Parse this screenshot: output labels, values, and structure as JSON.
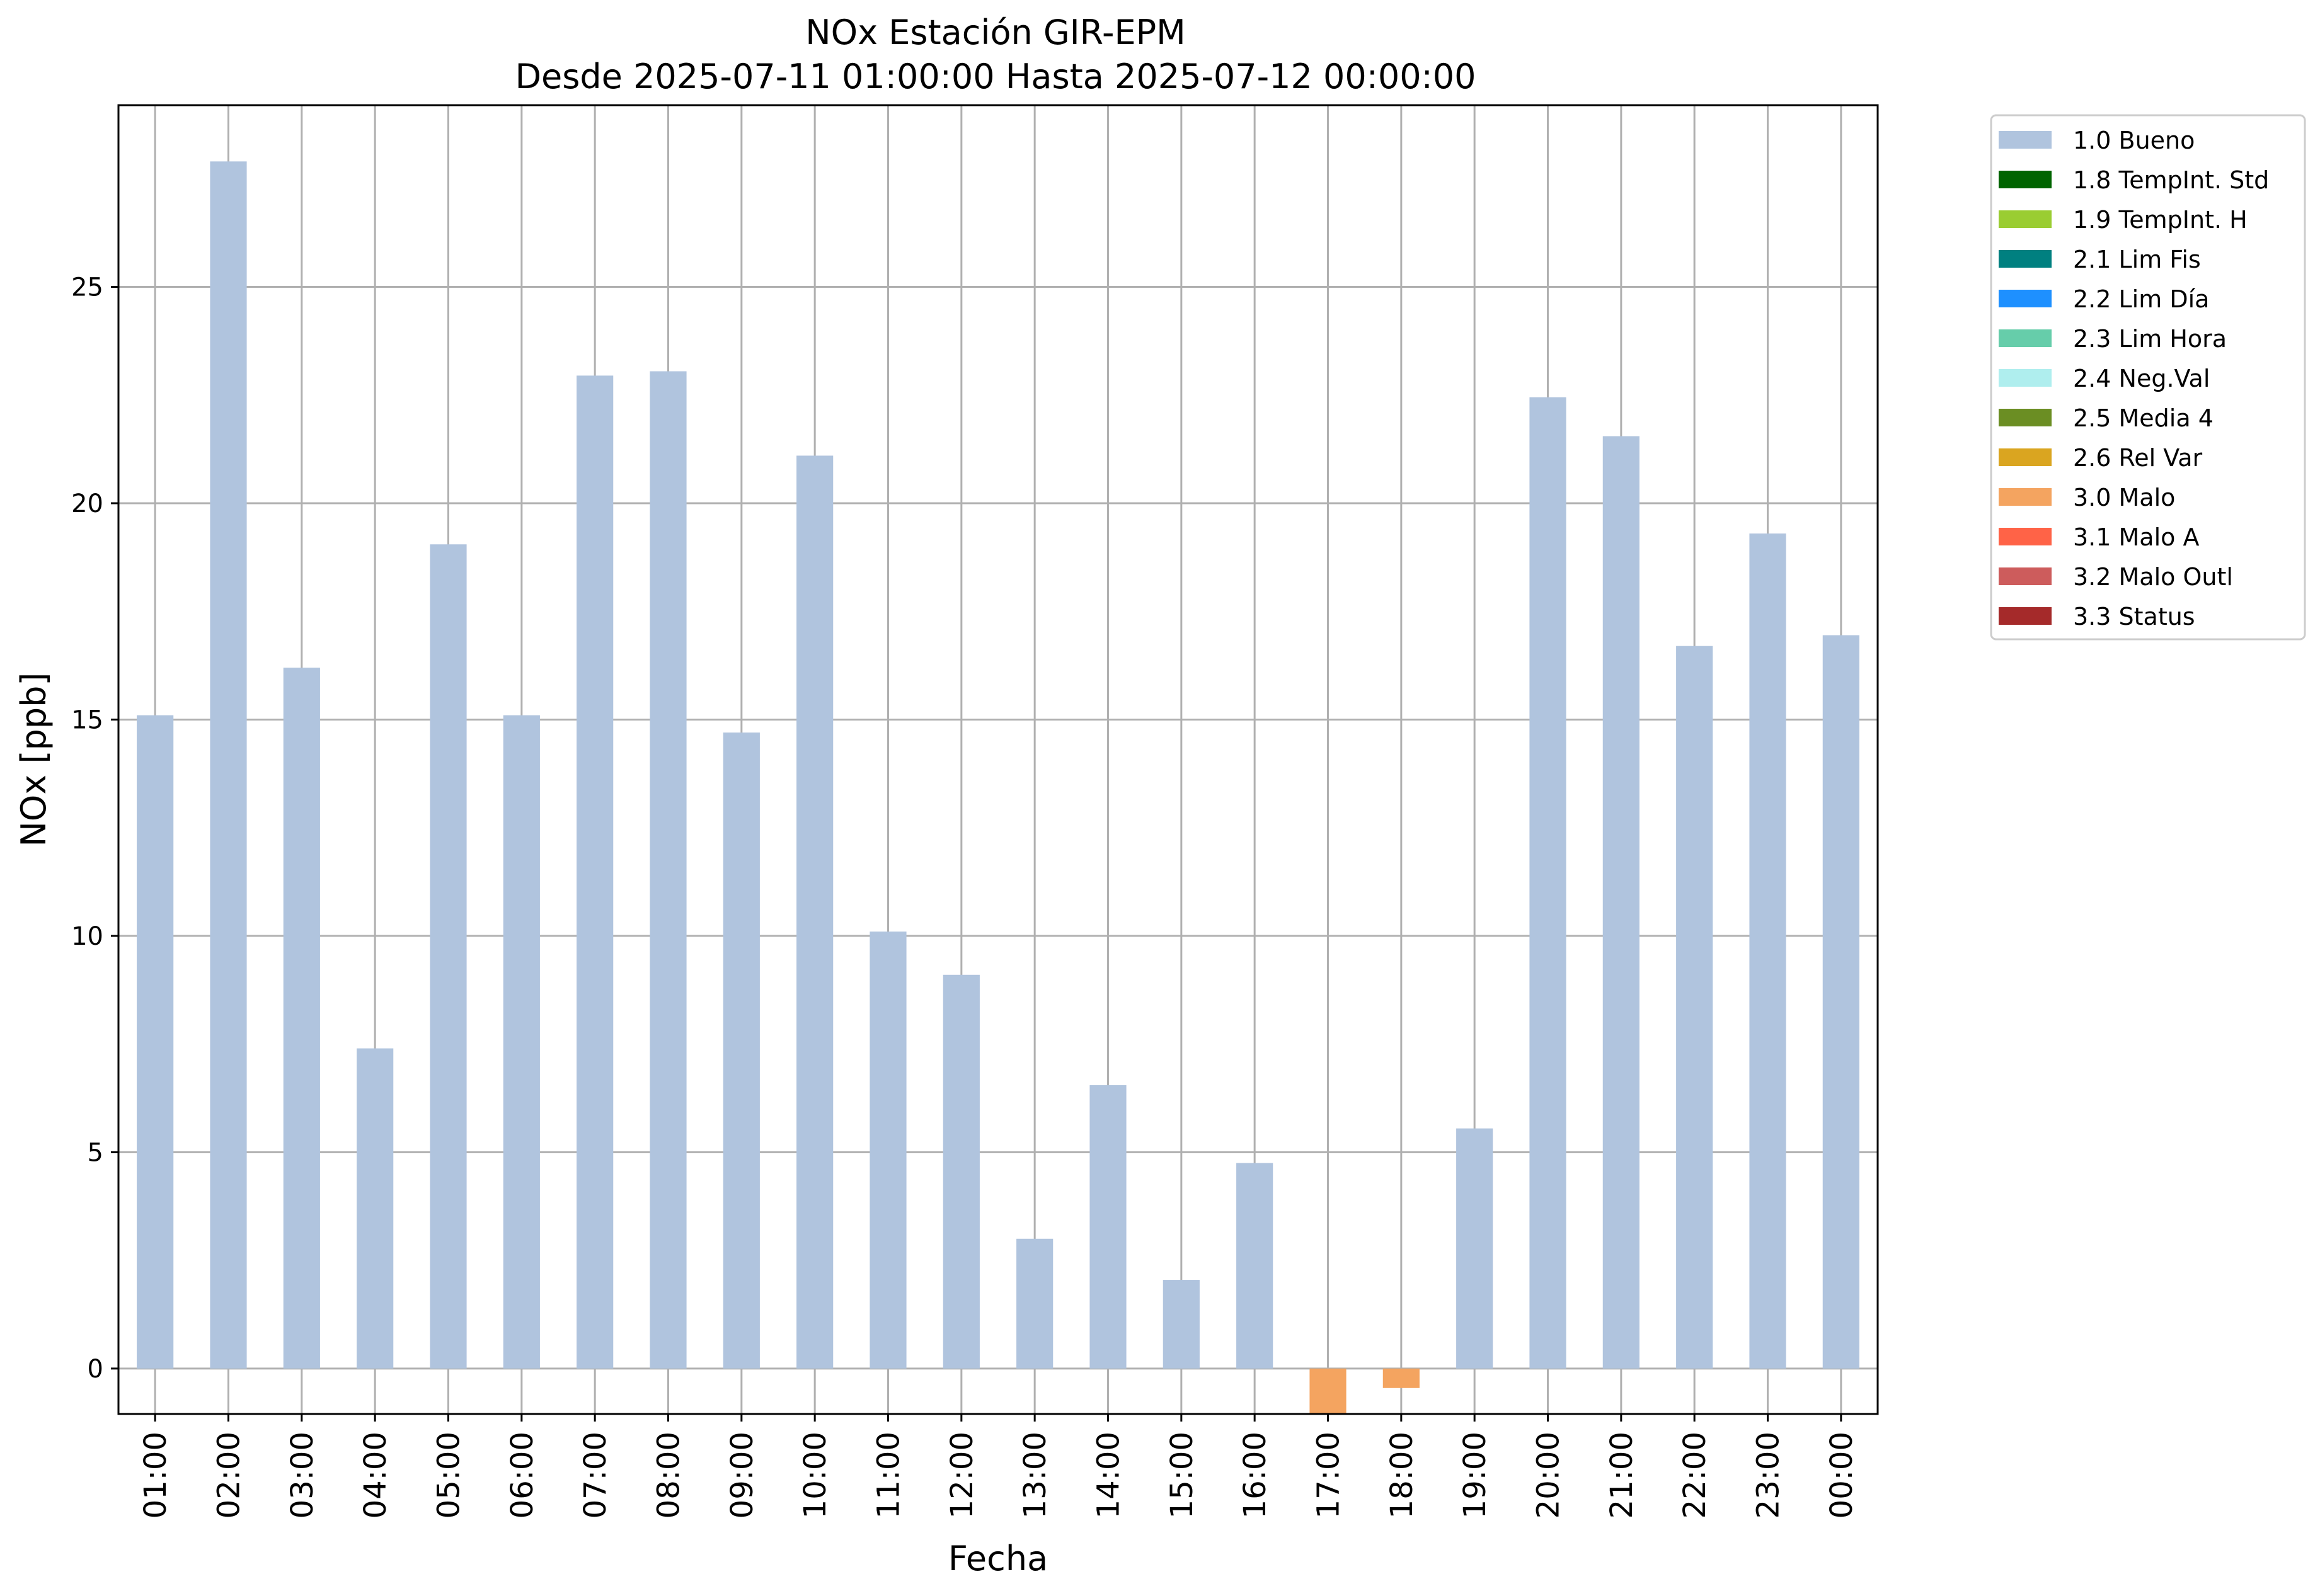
{
  "chart_data": {
    "type": "bar",
    "title": "NOx Estación GIR-EPM",
    "subtitle": "Desde 2025-07-11 01:00:00 Hasta 2025-07-12 00:00:00",
    "xlabel": "Fecha",
    "ylabel": "NOx [ppb]",
    "ylim": [
      -1.05,
      29.2
    ],
    "yticks": [
      0,
      5,
      10,
      15,
      20,
      25
    ],
    "grid": true,
    "legend_position": "outside-top-right",
    "categories": [
      "01:00",
      "02:00",
      "03:00",
      "04:00",
      "05:00",
      "06:00",
      "07:00",
      "08:00",
      "09:00",
      "10:00",
      "11:00",
      "12:00",
      "13:00",
      "14:00",
      "15:00",
      "16:00",
      "17:00",
      "18:00",
      "19:00",
      "20:00",
      "21:00",
      "22:00",
      "23:00",
      "00:00"
    ],
    "values": [
      15.1,
      27.9,
      16.2,
      7.4,
      19.05,
      15.1,
      22.95,
      23.05,
      14.7,
      21.1,
      10.1,
      9.1,
      3.0,
      6.55,
      2.05,
      4.75,
      -1.05,
      -0.45,
      5.55,
      22.45,
      21.55,
      16.7,
      19.3,
      16.95
    ],
    "flags": [
      "1.0 Bueno",
      "1.0 Bueno",
      "1.0 Bueno",
      "1.0 Bueno",
      "1.0 Bueno",
      "1.0 Bueno",
      "1.0 Bueno",
      "1.0 Bueno",
      "1.0 Bueno",
      "1.0 Bueno",
      "1.0 Bueno",
      "1.0 Bueno",
      "1.0 Bueno",
      "1.0 Bueno",
      "1.0 Bueno",
      "1.0 Bueno",
      "3.0 Malo",
      "3.0 Malo",
      "1.0 Bueno",
      "1.0 Bueno",
      "1.0 Bueno",
      "1.0 Bueno",
      "1.0 Bueno",
      "1.0 Bueno"
    ],
    "legend": [
      {
        "label": "1.0 Bueno",
        "color": "#b0c4de"
      },
      {
        "label": "1.8 TempInt. Std",
        "color": "#006400"
      },
      {
        "label": "1.9 TempInt. H",
        "color": "#9acd32"
      },
      {
        "label": "2.1 Lim Fis",
        "color": "#008080"
      },
      {
        "label": "2.2 Lim Día",
        "color": "#1e90ff"
      },
      {
        "label": "2.3 Lim Hora",
        "color": "#66cdaa"
      },
      {
        "label": "2.4 Neg.Val",
        "color": "#afeeee"
      },
      {
        "label": "2.5 Media 4",
        "color": "#6b8e23"
      },
      {
        "label": "2.6 Rel Var",
        "color": "#daa520"
      },
      {
        "label": "3.0 Malo",
        "color": "#f4a460"
      },
      {
        "label": "3.1 Malo A",
        "color": "#ff6347"
      },
      {
        "label": "3.2 Malo Outl",
        "color": "#cd5c5c"
      },
      {
        "label": "3.3 Status",
        "color": "#a52a2a"
      }
    ]
  }
}
